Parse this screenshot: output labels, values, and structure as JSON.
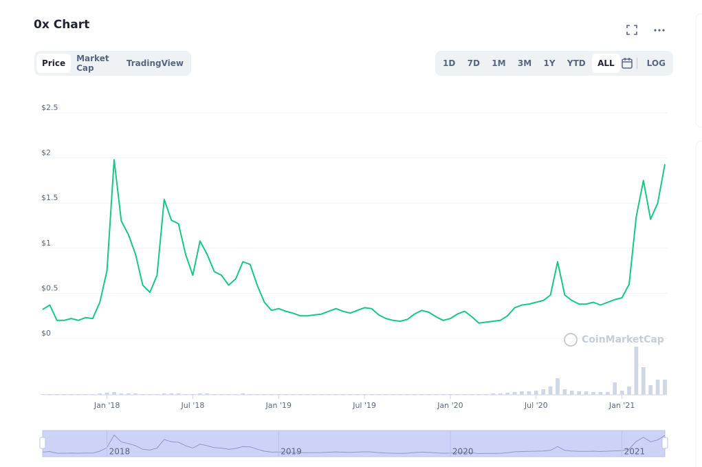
{
  "ui": {
    "title": "0x Chart",
    "tabs": [
      "Price",
      "Market Cap",
      "TradingView"
    ],
    "active_tab": "Price",
    "ranges": [
      "1D",
      "7D",
      "1M",
      "3M",
      "1Y",
      "YTD",
      "ALL"
    ],
    "active_range": "ALL",
    "log": "LOG"
  },
  "chart_data": {
    "type": "line",
    "categories": [
      null,
      null,
      null,
      null,
      null,
      null,
      null,
      null,
      null,
      "Jan '18",
      null,
      null,
      null,
      null,
      null,
      null,
      null,
      null,
      null,
      null,
      null,
      "Jul '18",
      null,
      null,
      null,
      null,
      null,
      null,
      null,
      null,
      null,
      null,
      null,
      "Jan '19",
      null,
      null,
      null,
      null,
      null,
      null,
      null,
      null,
      null,
      null,
      null,
      "Jul '19",
      null,
      null,
      null,
      null,
      null,
      null,
      null,
      null,
      null,
      null,
      null,
      "Jan '20",
      null,
      null,
      null,
      null,
      null,
      null,
      null,
      null,
      null,
      null,
      null,
      "Jul '20",
      null,
      null,
      null,
      null,
      null,
      null,
      null,
      null,
      null,
      null,
      null,
      "Jan '21",
      null,
      null,
      null,
      null,
      null,
      null
    ],
    "series": [
      {
        "color": "#16c784",
        "values": [
          0.32,
          0.37,
          0.2,
          0.2,
          0.22,
          0.2,
          0.23,
          0.22,
          0.4,
          0.75,
          1.98,
          1.3,
          1.15,
          0.93,
          0.59,
          0.51,
          0.7,
          1.54,
          1.31,
          1.27,
          0.93,
          0.7,
          1.08,
          0.93,
          0.74,
          0.7,
          0.59,
          0.66,
          0.85,
          0.82,
          0.59,
          0.4,
          0.31,
          0.33,
          0.3,
          0.28,
          0.25,
          0.25,
          0.26,
          0.27,
          0.3,
          0.33,
          0.3,
          0.28,
          0.31,
          0.34,
          0.33,
          0.26,
          0.22,
          0.2,
          0.19,
          0.21,
          0.27,
          0.31,
          0.29,
          0.24,
          0.2,
          0.22,
          0.27,
          0.3,
          0.24,
          0.17,
          0.18,
          0.19,
          0.2,
          0.25,
          0.34,
          0.37,
          0.38,
          0.4,
          0.42,
          0.48,
          0.85,
          0.48,
          0.42,
          0.38,
          0.38,
          0.4,
          0.37,
          0.4,
          0.43,
          0.45,
          0.6,
          1.35,
          1.75,
          1.32,
          1.5,
          1.93
        ]
      }
    ],
    "volume": {
      "color": "#cfd6e4",
      "lim": [
        0,
        80
      ],
      "values": [
        1,
        1,
        1,
        1,
        1,
        1,
        1,
        1,
        2,
        3,
        4,
        2,
        2,
        2,
        1,
        1,
        1,
        2,
        2,
        2,
        1,
        1,
        2,
        2,
        1,
        1,
        1,
        1,
        2,
        1,
        1,
        1,
        1,
        1,
        1,
        1,
        1,
        1,
        1,
        1,
        1,
        1,
        1,
        1,
        1,
        1,
        1,
        1,
        1,
        1,
        1,
        1,
        1,
        1,
        1,
        1,
        1,
        1,
        1,
        1,
        1,
        1,
        1,
        2,
        2,
        3,
        4,
        5,
        5,
        6,
        8,
        12,
        24,
        8,
        6,
        5,
        5,
        4,
        4,
        4,
        18,
        6,
        12,
        70,
        40,
        14,
        22,
        22
      ]
    },
    "ylim": [
      0,
      2.5
    ],
    "yticks": [
      {
        "value": 0,
        "label": "$0"
      },
      {
        "value": 0.5,
        "label": "$0.5"
      },
      {
        "value": 1,
        "label": "$1"
      },
      {
        "value": 1.5,
        "label": "$1.5"
      },
      {
        "value": 2,
        "label": "$2"
      },
      {
        "value": 2.5,
        "label": "$2.5"
      }
    ],
    "grid": true,
    "navigator": [
      "2018",
      "2019",
      "2020",
      "2021"
    ],
    "watermark": "CoinMarketCap"
  }
}
